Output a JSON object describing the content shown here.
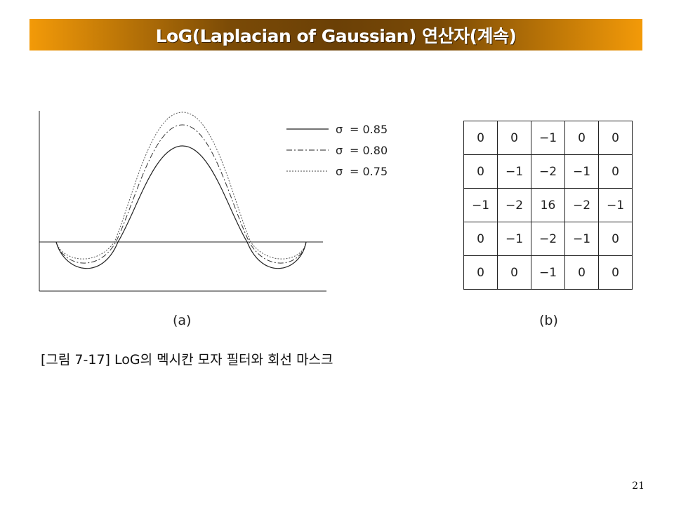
{
  "title": "LoG(Laplacian of Gaussian) 연산자(계속)",
  "figure_a": {
    "label": "(a)",
    "legend": [
      {
        "symbol": "σ",
        "text": "= 0.85",
        "style": "solid"
      },
      {
        "symbol": "σ",
        "text": "= 0.80",
        "style": "dash-dot"
      },
      {
        "symbol": "σ",
        "text": "= 0.75",
        "style": "dotted"
      }
    ]
  },
  "figure_b": {
    "label": "(b)",
    "mask": [
      [
        "0",
        "0",
        "−1",
        "0",
        "0"
      ],
      [
        "0",
        "−1",
        "−2",
        "−1",
        "0"
      ],
      [
        "−1",
        "−2",
        "16",
        "−2",
        "−1"
      ],
      [
        "0",
        "−1",
        "−2",
        "−1",
        "0"
      ],
      [
        "0",
        "0",
        "−1",
        "0",
        "0"
      ]
    ]
  },
  "caption": "[그림 7-17] LoG의 멕시칸 모자 필터와 회선 마스크",
  "page_number": "21"
}
